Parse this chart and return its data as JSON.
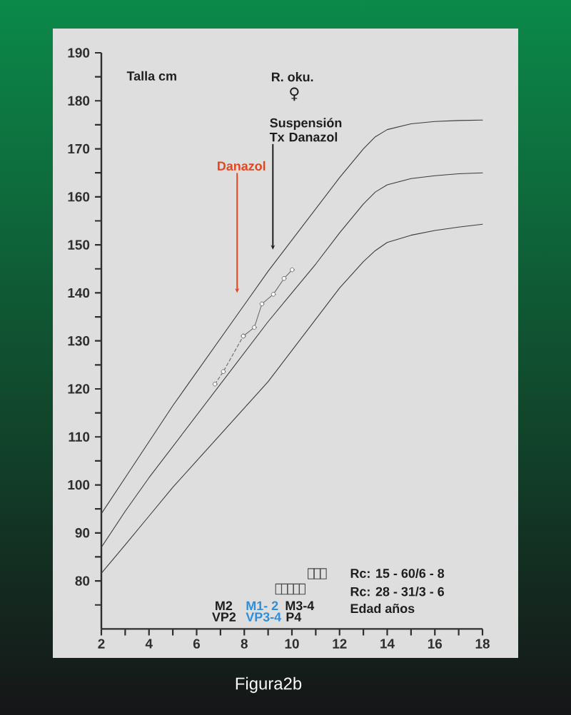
{
  "chart_data": {
    "type": "line",
    "xlabel": "Edad años",
    "ylabel": "Talla cm",
    "xlim": [
      2,
      18
    ],
    "ylim": [
      70,
      190
    ],
    "xticks": [
      2,
      {
        "value": 3,
        "label": null
      },
      4,
      {
        "value": 5,
        "label": null
      },
      6,
      {
        "value": 7,
        "label": null
      },
      8,
      {
        "value": 9,
        "label": null
      },
      10,
      {
        "value": 11,
        "label": null
      },
      12,
      {
        "value": 13,
        "label": null
      },
      14,
      {
        "value": 15,
        "label": null
      },
      16,
      {
        "value": 17,
        "label": null
      },
      18
    ],
    "yticks": [
      {
        "value": 75,
        "label": null
      },
      80,
      {
        "value": 85,
        "label": null
      },
      90,
      {
        "value": 95,
        "label": null
      },
      100,
      {
        "value": 105,
        "label": null
      },
      110,
      {
        "value": 115,
        "label": null
      },
      120,
      {
        "value": 125,
        "label": null
      },
      130,
      {
        "value": 135,
        "label": null
      },
      140,
      {
        "value": 145,
        "label": null
      },
      150,
      {
        "value": 155,
        "label": null
      },
      160,
      {
        "value": 165,
        "label": null
      },
      170,
      {
        "value": 175,
        "label": null
      },
      180,
      {
        "value": 185,
        "label": null
      },
      190
    ],
    "series": [
      {
        "color": "#3c3c3c",
        "marker": "none",
        "x": [
          2,
          3,
          4,
          5,
          6,
          7,
          8,
          9,
          10,
          11,
          12,
          13,
          13.5,
          14,
          15,
          16,
          17,
          18
        ],
        "values": [
          94,
          101.5,
          109,
          116.5,
          123.5,
          130.5,
          137.5,
          144.5,
          151,
          157.5,
          164,
          170,
          172.5,
          174,
          175.2,
          175.7,
          175.9,
          176
        ]
      },
      {
        "color": "#3c3c3c",
        "marker": "none",
        "x": [
          2,
          3,
          4,
          5,
          6,
          7,
          8,
          9,
          10,
          11,
          12,
          13,
          13.5,
          14,
          15,
          16,
          17,
          18
        ],
        "values": [
          87,
          94.5,
          101.5,
          108,
          114.5,
          121,
          127.5,
          134,
          140,
          146,
          152.5,
          158.5,
          161,
          162.5,
          163.8,
          164.4,
          164.8,
          165
        ]
      },
      {
        "color": "#3c3c3c",
        "marker": "none",
        "x": [
          2,
          3,
          4,
          5,
          6,
          7,
          8,
          9,
          10,
          11,
          12,
          13,
          13.5,
          14,
          15,
          16,
          17,
          18
        ],
        "values": [
          81.6,
          87.5,
          93.5,
          99.5,
          105,
          110.5,
          116,
          121.5,
          128,
          134.5,
          141,
          146.5,
          148.8,
          150.5,
          152,
          153,
          153.7,
          154.3
        ]
      },
      {
        "color": "#6a6a6a",
        "marker": "circle",
        "line_style": "dashed",
        "x": [
          6.77,
          7.12,
          7.96
        ],
        "values": [
          121,
          123.6,
          131
        ]
      },
      {
        "color": "#6a6a6a",
        "marker": "circle",
        "line_style": "solid",
        "x": [
          7.96,
          8.42,
          8.74,
          9.22,
          9.67,
          10.01
        ],
        "values": [
          131,
          132.8,
          137.7,
          139.7,
          143,
          144.8
        ]
      },
      {
        "type": "scatter",
        "color": "#4a4a4a",
        "marker": "square",
        "x": [
          9.44,
          9.69,
          9.94,
          10.19,
          10.43,
          10.8,
          11.06,
          11.32
        ],
        "values": [
          78.3,
          78.3,
          78.3,
          78.3,
          78.3,
          81.5,
          81.5,
          81.5
        ]
      }
    ],
    "annotations": [
      {
        "text": "Danazol",
        "x": 7.7,
        "y": 140
      },
      {
        "text": "Suspensión Tx Danazol",
        "x": 9.2,
        "y": 149
      },
      "R. oku.",
      "♀",
      "M2",
      "VP2",
      "M1- 2",
      "VP3-4",
      "M3-4",
      "P4",
      "Rc: 15 - 60/6 - 8",
      "Rc: 28 - 31/3 - 6",
      "Figura2b"
    ]
  }
}
